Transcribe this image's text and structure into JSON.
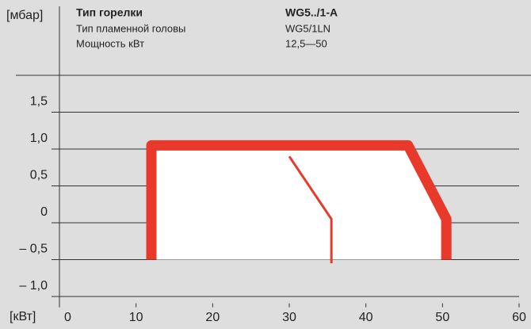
{
  "chart_data": {
    "type": "line",
    "y_label": "[мбар]",
    "x_label": "[кВт]",
    "header": {
      "rows": [
        {
          "label": "Тип горелки",
          "value": "WG5../1-A"
        },
        {
          "label": "Тип пламенной головы",
          "value": "WG5/1LN"
        },
        {
          "label": "Мощность кВт",
          "value": "12,5—50"
        }
      ]
    },
    "series": [
      {
        "name": "working_field",
        "color": "#e8392b",
        "x": [
          12,
          12,
          45.5,
          50.5,
          50.5
        ],
        "values": [
          -0.5,
          1.05,
          1.05,
          0.05,
          -0.5
        ]
      },
      {
        "name": "limit",
        "color": "#e8392b",
        "x": [
          30,
          35.5,
          35.5
        ],
        "values": [
          0.9,
          0.05,
          -0.55
        ]
      }
    ],
    "xlim": [
      0,
      60
    ],
    "xticks": [
      0,
      10,
      20,
      30,
      40,
      50,
      60
    ],
    "ylim": [
      -1.2,
      2.0
    ],
    "yticks": [
      {
        "value": 1.5,
        "label": "1,5"
      },
      {
        "value": 1.0,
        "label": "1,0"
      },
      {
        "value": 0.5,
        "label": "0,5"
      },
      0,
      {
        "value": -0.5,
        "label": "– 0,5"
      },
      {
        "value": -1.0,
        "label": "– 1,0"
      }
    ],
    "grid": true
  }
}
